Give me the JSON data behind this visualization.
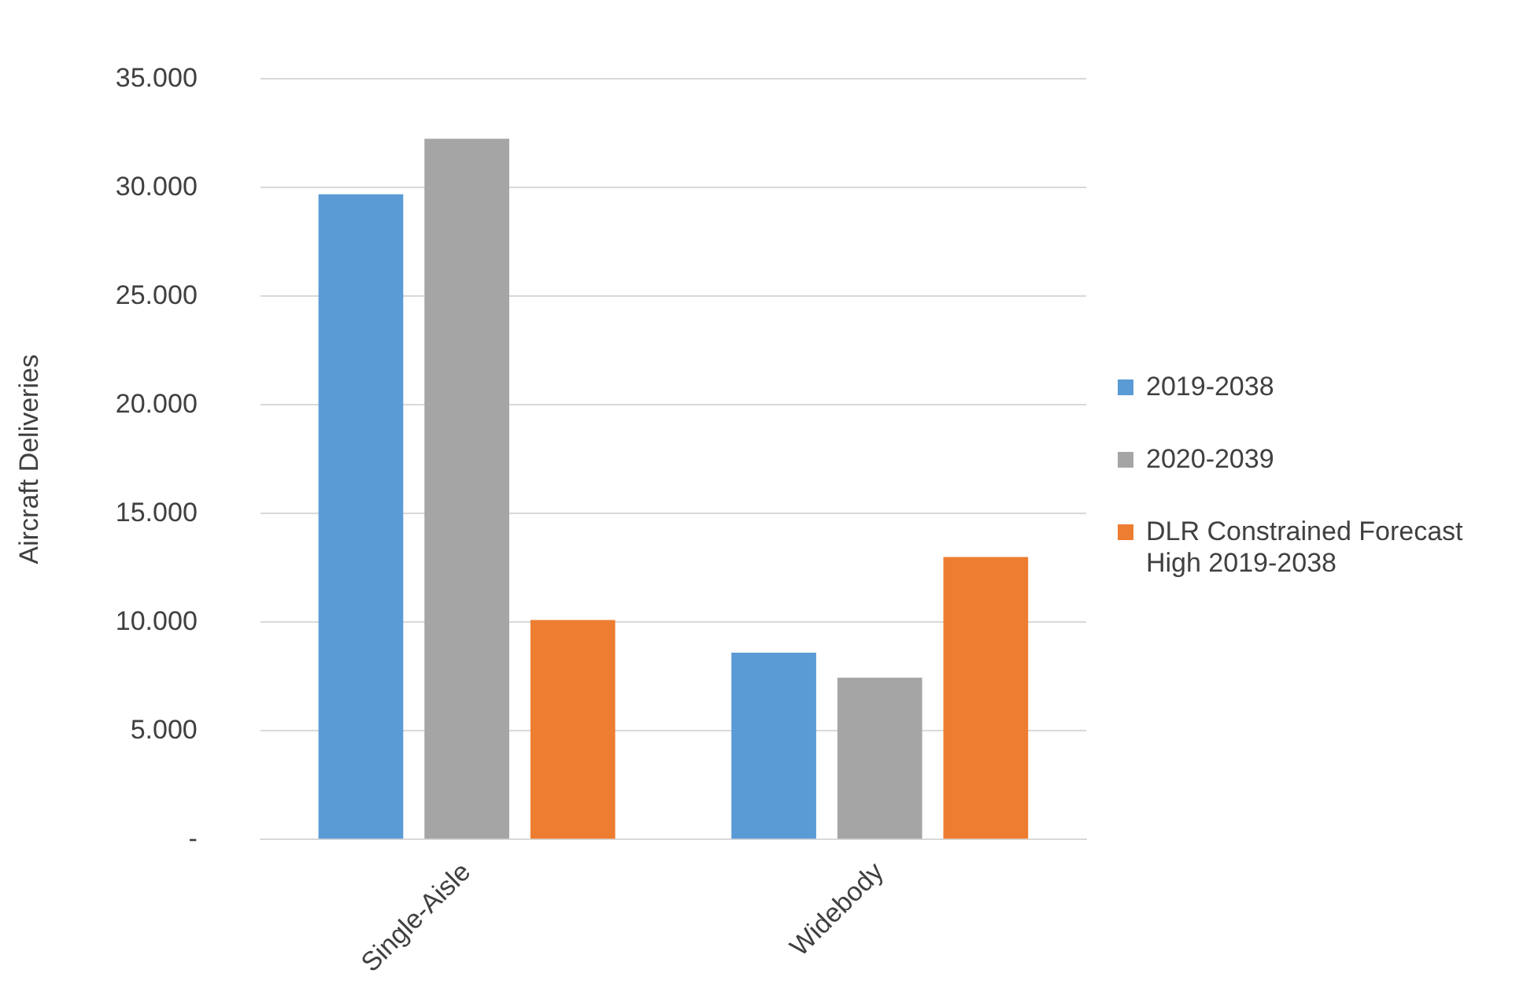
{
  "chart_data": {
    "type": "bar",
    "ylabel": "Aircraft Deliveries",
    "categories": [
      "Single-Aisle",
      "Widebody"
    ],
    "series": [
      {
        "name": "2019-2038",
        "color": "#5b9bd5",
        "values": [
          29700,
          8600
        ]
      },
      {
        "name": "2020-2039",
        "color": "#a5a5a5",
        "values": [
          32250,
          7450
        ]
      },
      {
        "name": "DLR Constrained Forecast High 2019-2038",
        "color": "#ed7d31",
        "values": [
          10100,
          13000
        ]
      }
    ],
    "ylim": [
      0,
      35000
    ],
    "yticks": [
      {
        "value": 0,
        "label": "-"
      },
      {
        "value": 5000,
        "label": "5.000"
      },
      {
        "value": 10000,
        "label": "10.000"
      },
      {
        "value": 15000,
        "label": "15.000"
      },
      {
        "value": 20000,
        "label": "20.000"
      },
      {
        "value": 25000,
        "label": "25.000"
      },
      {
        "value": 30000,
        "label": "30.000"
      },
      {
        "value": 35000,
        "label": "35.000"
      }
    ],
    "grid": "y",
    "legend": "right"
  }
}
